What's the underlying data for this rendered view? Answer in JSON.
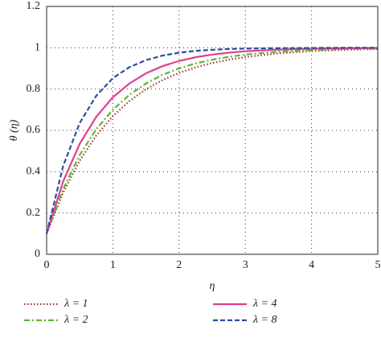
{
  "chart_data": {
    "type": "line",
    "x_label": "η",
    "y_label": "θ (η)",
    "x": [
      0,
      0.25,
      0.5,
      0.75,
      1,
      1.25,
      1.5,
      1.75,
      2,
      2.25,
      2.5,
      2.75,
      3,
      3.5,
      4,
      4.5,
      5
    ],
    "series": [
      {
        "name": "λ = 1",
        "color": "#a0342e",
        "values": [
          0.1,
          0.299,
          0.454,
          0.575,
          0.669,
          0.742,
          0.799,
          0.844,
          0.878,
          0.905,
          0.926,
          0.942,
          0.955,
          0.973,
          0.984,
          0.99,
          0.994
        ]
      },
      {
        "name": "λ = 2",
        "color": "#5cb82e",
        "values": [
          0.1,
          0.316,
          0.481,
          0.606,
          0.7,
          0.772,
          0.827,
          0.869,
          0.9,
          0.924,
          0.942,
          0.956,
          0.967,
          0.981,
          0.989,
          0.994,
          0.996
        ]
      },
      {
        "name": "λ = 4",
        "color": "#e0408f",
        "values": [
          0.1,
          0.353,
          0.535,
          0.666,
          0.76,
          0.827,
          0.876,
          0.911,
          0.936,
          0.954,
          0.967,
          0.976,
          0.983,
          0.991,
          0.995,
          0.998,
          0.999
        ]
      },
      {
        "name": "λ = 8",
        "color": "#2b4f9e",
        "values": [
          0.1,
          0.428,
          0.636,
          0.768,
          0.853,
          0.906,
          0.94,
          0.962,
          0.976,
          0.985,
          0.99,
          0.994,
          0.996,
          0.998,
          0.999,
          1,
          1
        ]
      }
    ],
    "xlim": [
      0,
      5
    ],
    "xticks": [
      0,
      1,
      2,
      3,
      4,
      5
    ],
    "ylim": [
      0,
      1.2
    ],
    "yticks": [
      0,
      0.2,
      0.4,
      0.6,
      0.8,
      1,
      1.2
    ],
    "grid": true
  }
}
